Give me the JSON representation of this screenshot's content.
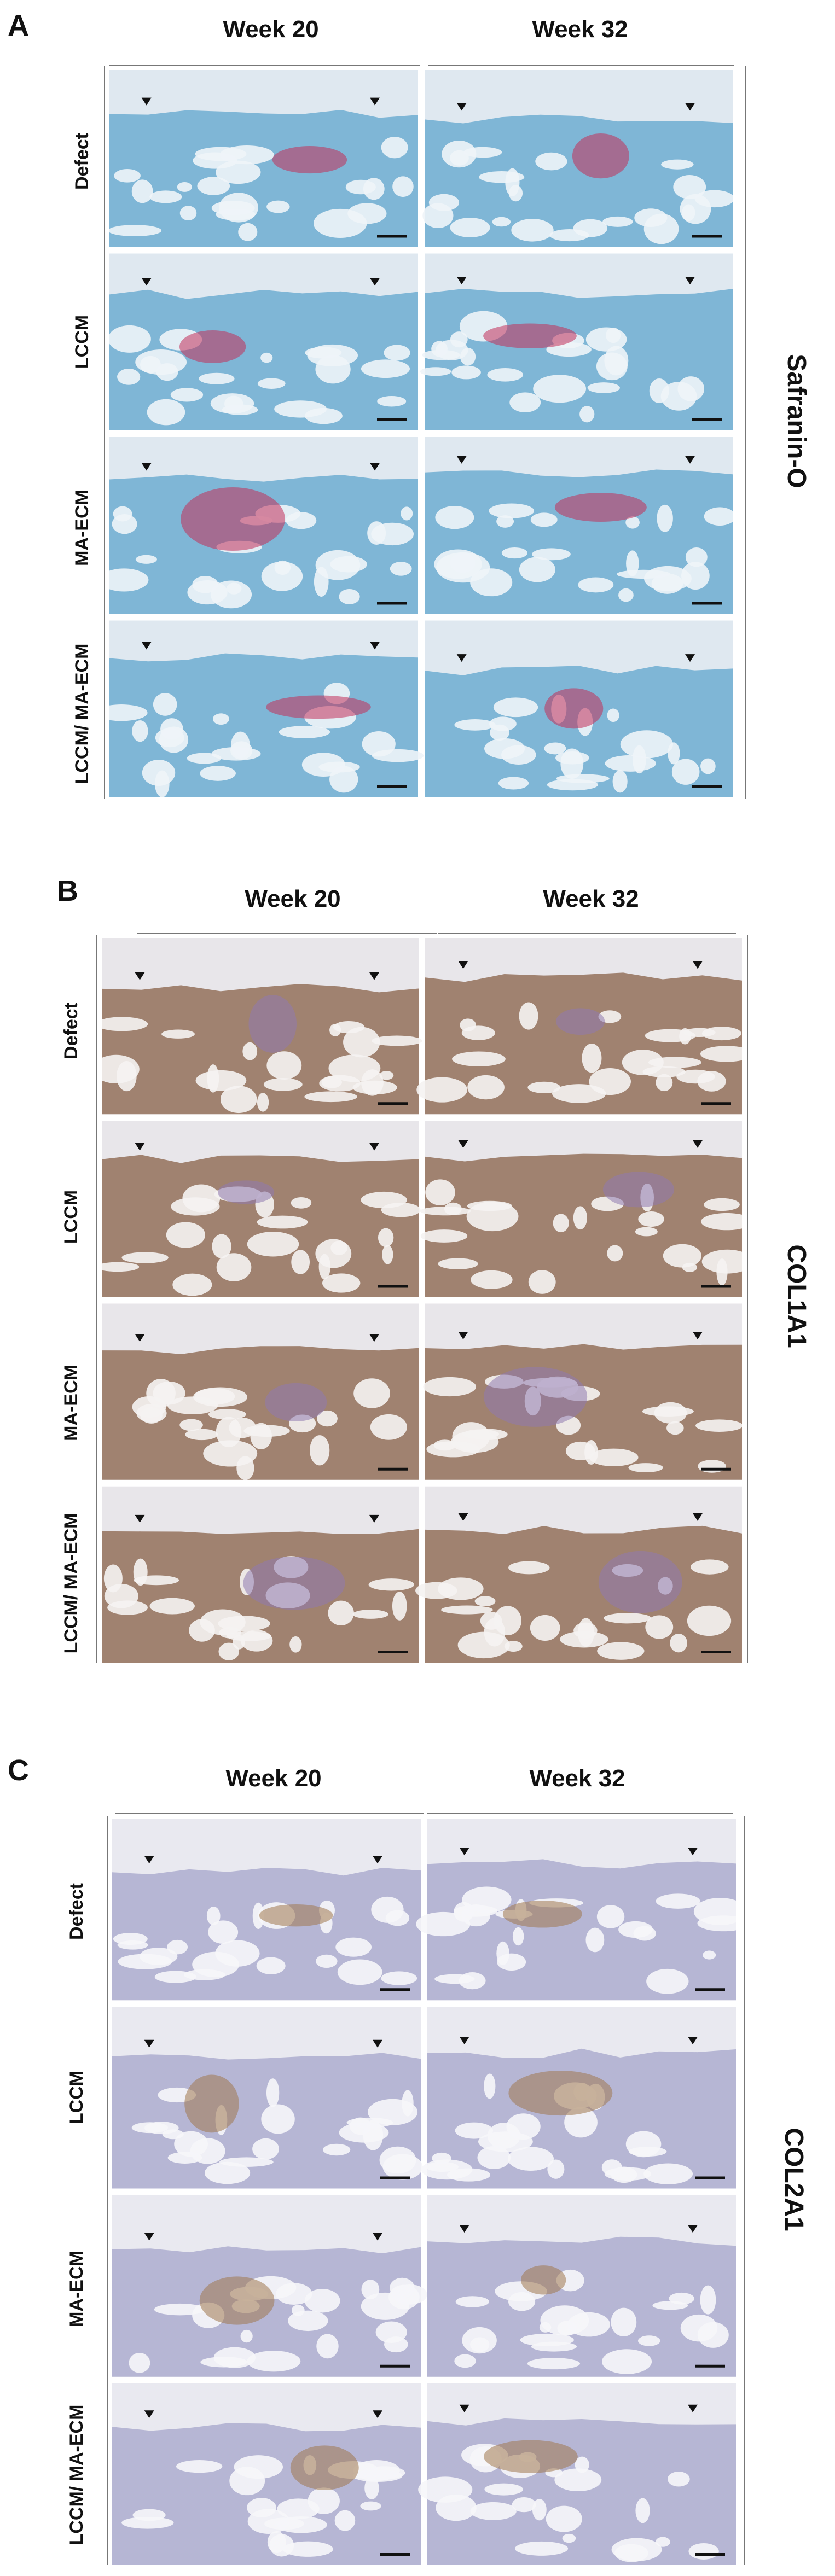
{
  "panels": [
    {
      "letter": "A",
      "stain": "Safranin-O",
      "columns": [
        "Week 20",
        "Week 32"
      ],
      "rows": [
        "Defect",
        "LCCM",
        "MA-ECM",
        "LCCM/ MA-ECM"
      ],
      "colors": {
        "background": "#dfe8f0",
        "tissue": "#7fb6d6",
        "bone": "#8fc1dc",
        "marrow": "#eef4f8",
        "stain": "#c2305a"
      }
    },
    {
      "letter": "B",
      "stain": "COL1A1",
      "columns": [
        "Week 20",
        "Week 32"
      ],
      "rows": [
        "Defect",
        "LCCM",
        "MA-ECM",
        "LCCM/ MA-ECM"
      ],
      "colors": {
        "background": "#e8e6ea",
        "tissue": "#a08270",
        "bone": "#957564",
        "marrow": "#f5f3f2",
        "stain": "#8f7ab0"
      }
    },
    {
      "letter": "C",
      "stain": "COL2A1",
      "columns": [
        "Week 20",
        "Week 32"
      ],
      "rows": [
        "Defect",
        "LCCM",
        "MA-ECM",
        "LCCM/ MA-ECM"
      ],
      "colors": {
        "background": "#e9e9f0",
        "tissue": "#b6b6d4",
        "bone": "#c0c0da",
        "marrow": "#f6f6fa",
        "stain": "#a0784f"
      }
    }
  ]
}
